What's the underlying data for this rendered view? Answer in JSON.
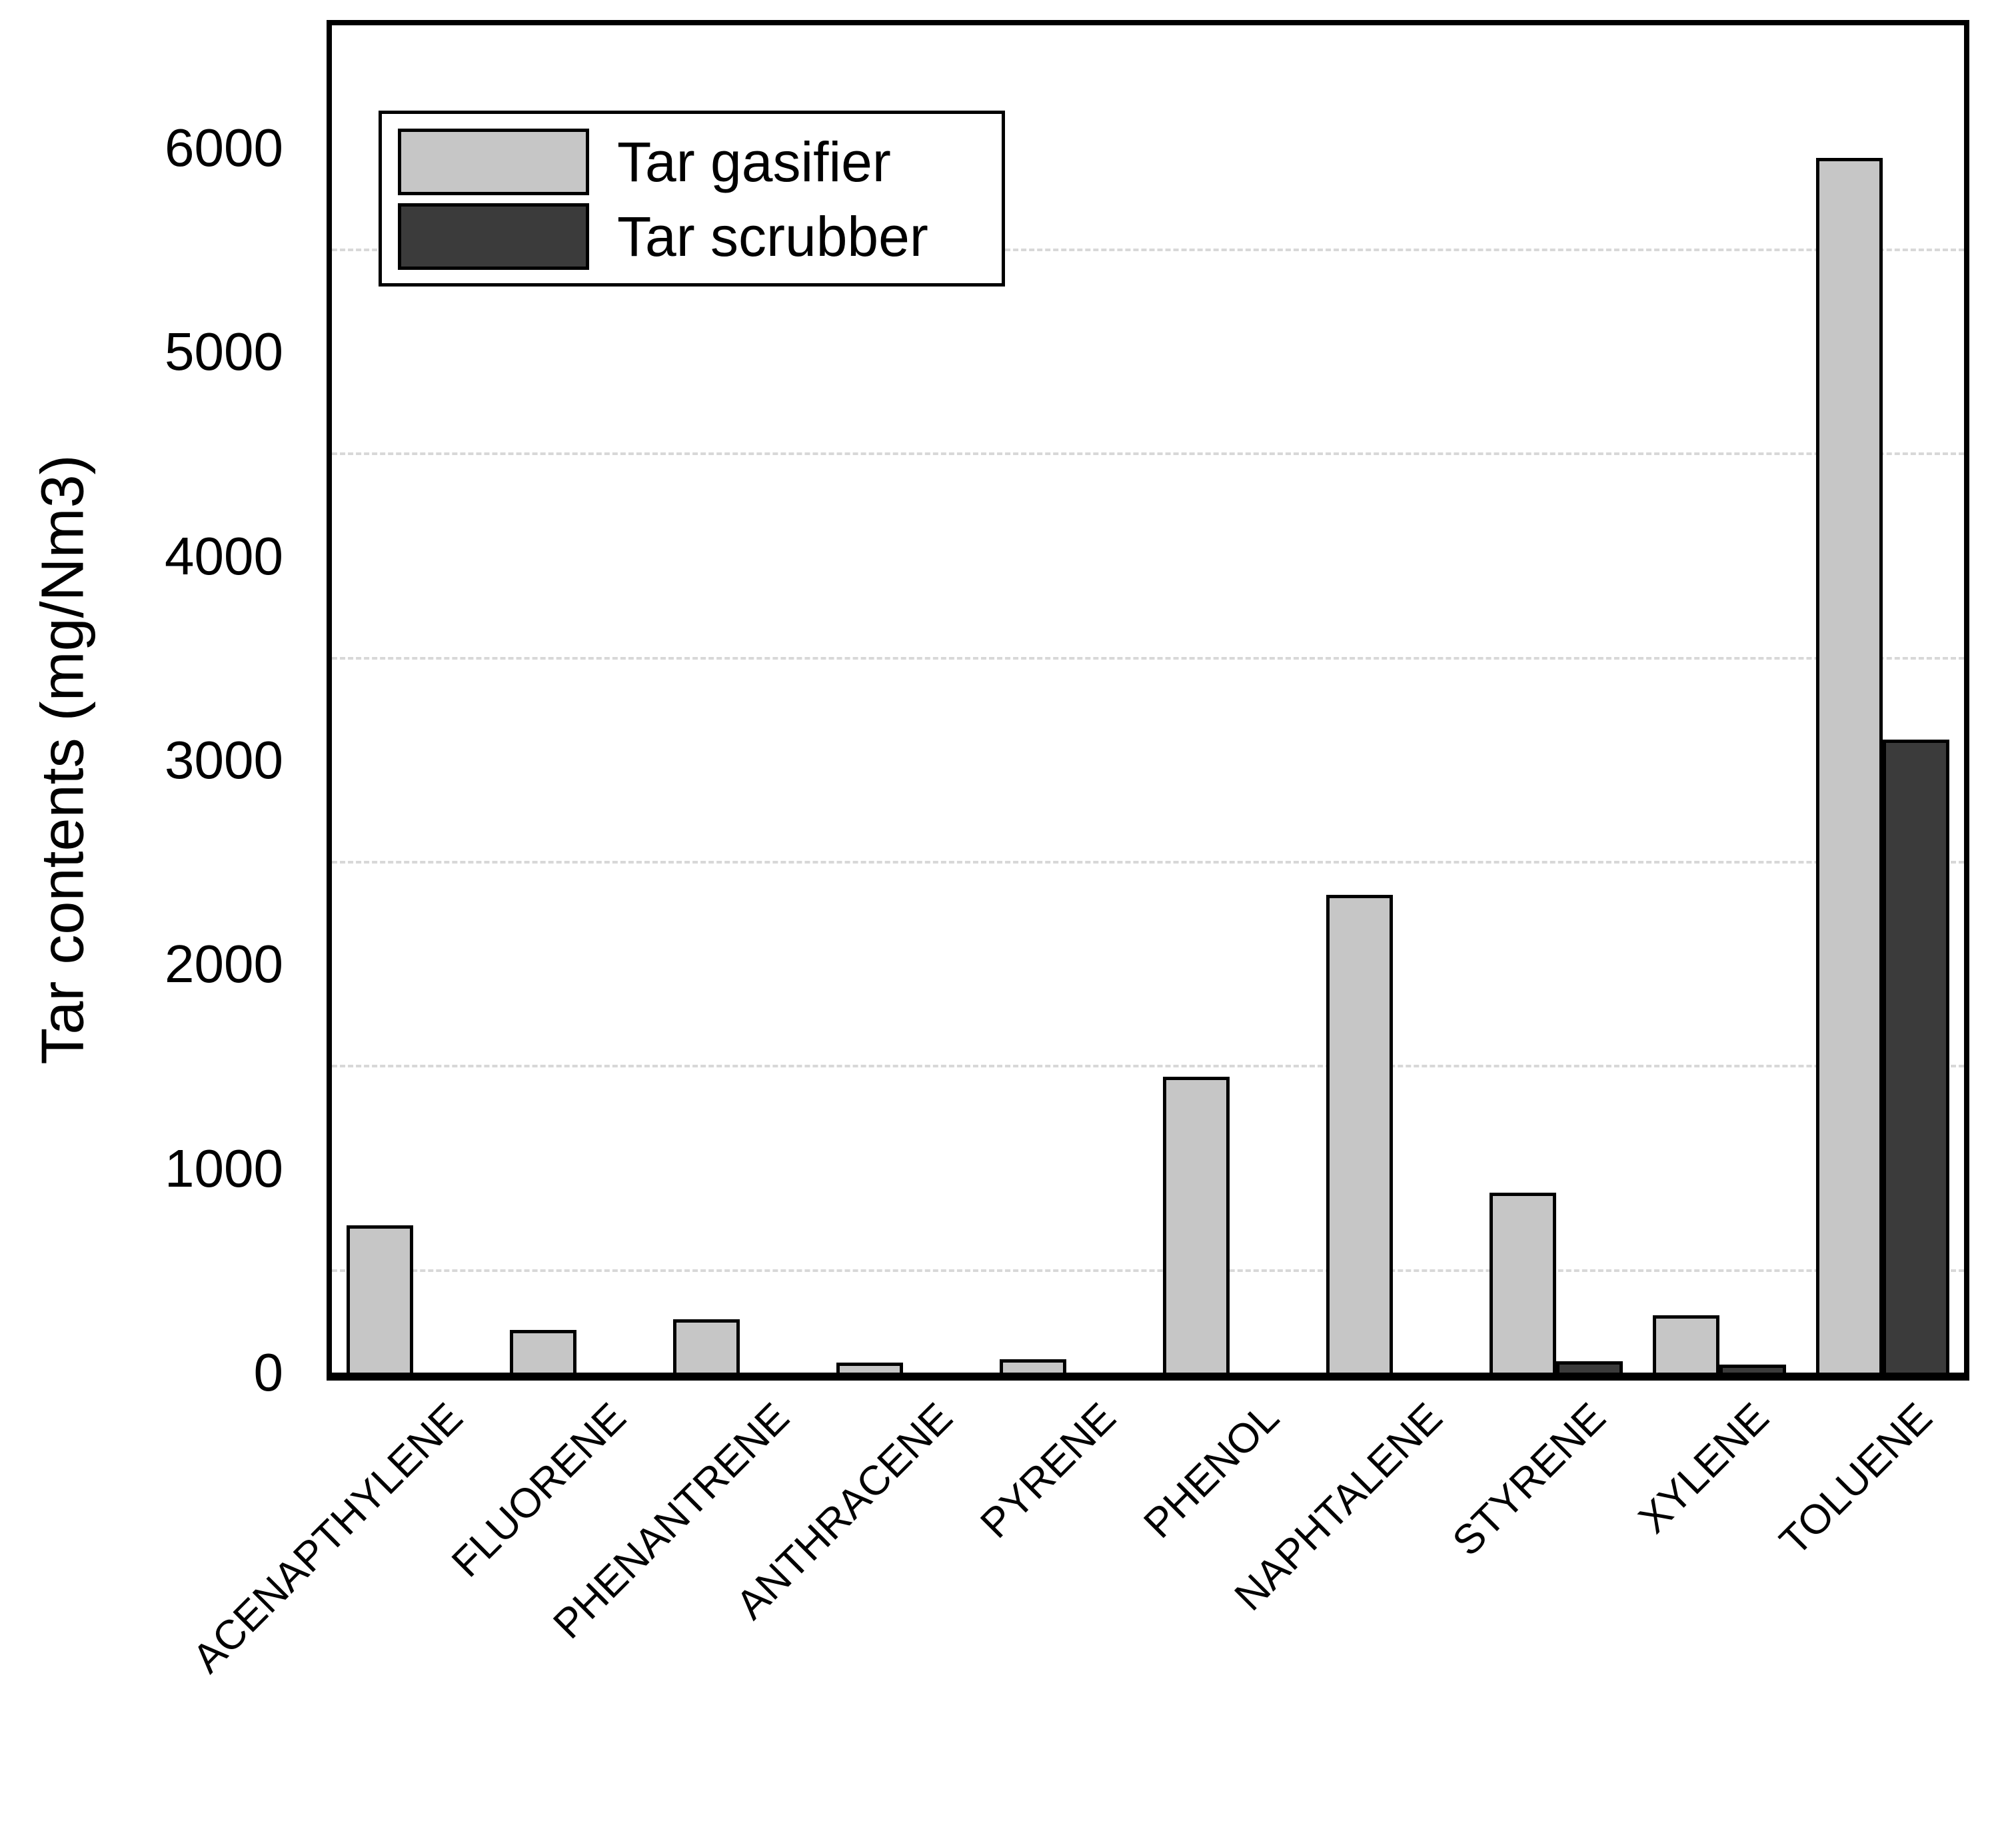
{
  "chart_data": {
    "type": "bar",
    "title": "",
    "xlabel": "",
    "ylabel": "Tar contents (mg/Nm3)",
    "categories": [
      "ACENAPTHYLENE",
      "FLUORENE",
      "PHENANTRENE",
      "ANTHRACENE",
      "PYRENE",
      "PHENOL",
      "NAPHTALENE",
      "STYRENE",
      "XYLENE",
      "TOLUENE"
    ],
    "series": [
      {
        "name": "Tar gasifier",
        "color": "#c6c6c6",
        "values": [
          720,
          210,
          260,
          50,
          65,
          1450,
          2340,
          880,
          280,
          5950
        ]
      },
      {
        "name": "Tar scrubber",
        "color": "#3b3b3b",
        "values": [
          0,
          0,
          0,
          0,
          0,
          0,
          0,
          55,
          40,
          3100
        ]
      }
    ],
    "ylim": [
      0,
      6600
    ],
    "yticks": [
      0,
      1000,
      2000,
      3000,
      4000,
      5000,
      6000
    ],
    "gridlines": [
      500,
      1500,
      2500,
      3500,
      4500,
      5500
    ],
    "grid_style": "dashed",
    "grid_color": "#d8d8d8",
    "bar_border_color": "#000000",
    "legend_position": "top-left",
    "legend_items": [
      "Tar gasifier",
      "Tar scrubber"
    ]
  }
}
